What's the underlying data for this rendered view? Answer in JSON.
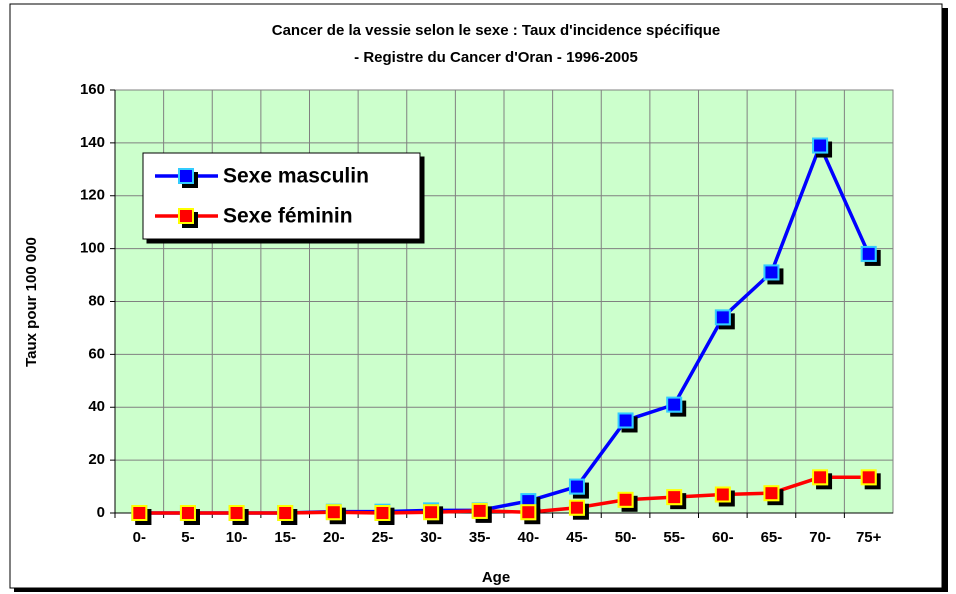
{
  "chart_data": {
    "type": "line",
    "title": [
      "Cancer de la vessie selon le sexe : Taux d'incidence spécifique",
      "- Registre du Cancer d'Oran   - 1996-2005"
    ],
    "x_label": "Age",
    "y_label": "Taux pour 100 000",
    "categories": [
      "0-",
      "5-",
      "10-",
      "15-",
      "20-",
      "25-",
      "30-",
      "35-",
      "40-",
      "45-",
      "50-",
      "55-",
      "60-",
      "65-",
      "70-",
      "75+"
    ],
    "series": [
      {
        "name": "Sexe masculin",
        "color": "#0000ff",
        "marker_border": "#33ccff",
        "values": [
          0,
          0,
          0,
          0,
          0.5,
          0.5,
          1,
          1,
          4.5,
          10,
          35,
          41,
          74,
          91,
          139,
          98
        ]
      },
      {
        "name": "Sexe féminin",
        "color": "#ff0000",
        "marker_border": "#ffff00",
        "values": [
          0,
          0,
          0,
          0,
          0.3,
          0,
          0.3,
          0.8,
          0.3,
          2,
          5,
          6,
          7,
          7.5,
          13.5,
          13.5
        ]
      }
    ],
    "ylim": [
      0,
      160
    ],
    "yticks": [
      0,
      20,
      40,
      60,
      80,
      100,
      120,
      140,
      160
    ],
    "grid": true,
    "plot_background": "#ccffcc",
    "legend": "upper left"
  }
}
